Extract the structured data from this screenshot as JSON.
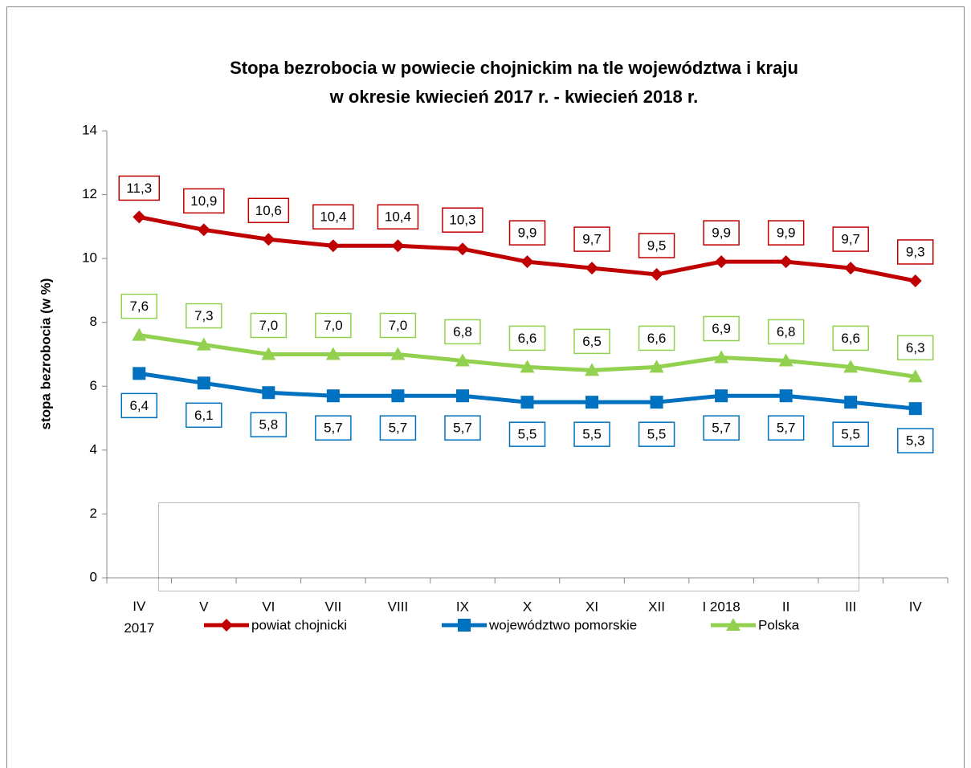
{
  "chart_data": {
    "type": "line",
    "title": "Stopa bezrobocia w powiecie chojnickim na tle województwa i kraju",
    "subtitle": "w okresie kwiecień 2017 r. - kwiecień 2018 r.",
    "y_label": "stopa bezrobocia (w %)",
    "categories": [
      "IV\n2017",
      "V",
      "VI",
      "VII",
      "VIII",
      "IX",
      "X",
      "XI",
      "XII",
      "I 2018",
      "II",
      "III",
      "IV"
    ],
    "ylim": [
      0,
      14
    ],
    "yticks": [
      0,
      2,
      4,
      6,
      8,
      10,
      12,
      14
    ],
    "grid": false,
    "legend": "bottom",
    "series": [
      {
        "name": "powiat chojnicki",
        "color": "#c00000",
        "marker": "diamond",
        "values": [
          11.3,
          10.9,
          10.6,
          10.4,
          10.4,
          10.3,
          9.9,
          9.7,
          9.5,
          9.9,
          9.9,
          9.7,
          9.3
        ],
        "value_labels": [
          "11,3",
          "10,9",
          "10,6",
          "10,4",
          "10,4",
          "10,3",
          "9,9",
          "9,7",
          "9,5",
          "9,9",
          "9,9",
          "9,7",
          "9,3"
        ]
      },
      {
        "name": "województwo pomorskie",
        "color": "#0070c0",
        "marker": "square",
        "values": [
          6.4,
          6.1,
          5.8,
          5.7,
          5.7,
          5.7,
          5.5,
          5.5,
          5.5,
          5.7,
          5.7,
          5.5,
          5.3
        ],
        "value_labels": [
          "6,4",
          "6,1",
          "5,8",
          "5,7",
          "5,7",
          "5,7",
          "5,5",
          "5,5",
          "5,5",
          "5,7",
          "5,7",
          "5,5",
          "5,3"
        ]
      },
      {
        "name": "Polska",
        "color": "#92d050",
        "marker": "triangle",
        "values": [
          7.6,
          7.3,
          7.0,
          7.0,
          7.0,
          6.8,
          6.6,
          6.5,
          6.6,
          6.9,
          6.8,
          6.6,
          6.3
        ],
        "value_labels": [
          "7,6",
          "7,3",
          "7,0",
          "7,0",
          "7,0",
          "6,8",
          "6,6",
          "6,5",
          "6,6",
          "6,9",
          "6,8",
          "6,6",
          "6,3"
        ]
      }
    ]
  }
}
